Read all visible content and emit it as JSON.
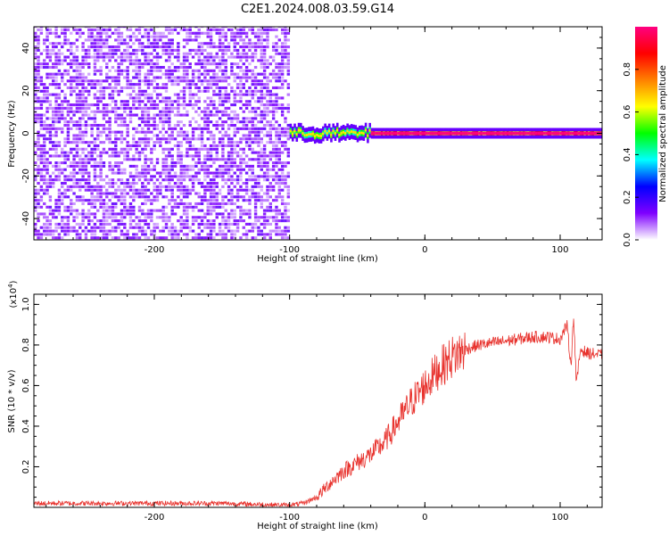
{
  "title": "C2E1.2024.008.03.59.G14",
  "chart_data": [
    {
      "type": "heatmap",
      "xlabel": "Height of straight line (km)",
      "ylabel": "Frequency (Hz)",
      "xlim": [
        -289,
        131
      ],
      "ylim": [
        -50,
        50
      ],
      "x_ticks": [
        -200,
        -100,
        0,
        100
      ],
      "y_ticks": [
        -40,
        -20,
        0,
        20,
        40
      ],
      "colorbar": {
        "label": "Normalized spectral amplitude",
        "range": [
          0,
          1
        ],
        "ticks": [
          0.0,
          0.2,
          0.4,
          0.6,
          0.8
        ],
        "stops": [
          "#ffffff",
          "#7f00ff",
          "#0000ff",
          "#00ffff",
          "#00ff00",
          "#ffff00",
          "#ff8000",
          "#ff0000",
          "#ff0080"
        ]
      },
      "regions": [
        {
          "x_range": [
            -289,
            -100
          ],
          "freq_range": [
            -50,
            50
          ],
          "amplitude": 0.1,
          "description_values": "noise"
        },
        {
          "x_range": [
            -100,
            -40
          ],
          "center_freq": 0,
          "width_hz": 5,
          "amplitude": 0.55
        },
        {
          "x_range": [
            -40,
            131
          ],
          "center_freq": 0,
          "width_hz": 3,
          "amplitude": 0.9
        }
      ]
    },
    {
      "type": "line",
      "xlabel": "Height of straight line (km)",
      "ylabel": "SNR (10 * v/v)",
      "scale_label": "(x10",
      "scale_exp": "4",
      "scale_close": ")",
      "xlim": [
        -289,
        131
      ],
      "ylim": [
        0,
        1.05
      ],
      "x_ticks": [
        -200,
        -100,
        0,
        100
      ],
      "y_ticks": [
        0.2,
        0.4,
        0.6,
        0.8,
        1.0
      ],
      "series": [
        {
          "color": "#e8332e",
          "x": [
            -289,
            -250,
            -200,
            -150,
            -100,
            -90,
            -80,
            -70,
            -60,
            -50,
            -40,
            -30,
            -20,
            -10,
            0,
            10,
            20,
            30,
            40,
            50,
            60,
            70,
            80,
            90,
            100,
            105,
            108,
            110,
            112,
            115,
            120,
            131
          ],
          "y": [
            0.02,
            0.02,
            0.02,
            0.02,
            0.01,
            0.02,
            0.05,
            0.12,
            0.18,
            0.22,
            0.26,
            0.32,
            0.42,
            0.52,
            0.6,
            0.68,
            0.74,
            0.78,
            0.8,
            0.81,
            0.82,
            0.83,
            0.84,
            0.84,
            0.83,
            0.9,
            0.7,
            0.95,
            0.6,
            0.78,
            0.76,
            0.75
          ]
        }
      ]
    }
  ]
}
